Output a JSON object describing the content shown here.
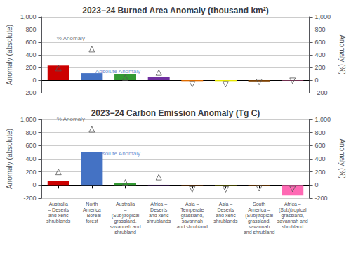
{
  "chart_data": [
    {
      "type": "bar",
      "title": "2023−24 Burned Area Anomaly (thousand km²)",
      "categories": [
        null,
        null,
        null,
        null,
        null,
        null,
        null,
        null
      ],
      "tick_labels": "y",
      "ylabel": "Anomaly (absolute)",
      "y2label": "Anomaly (%)",
      "ylim": [
        -200,
        1000
      ],
      "yticks": [
        -200,
        0,
        200,
        400,
        600,
        800,
        1000
      ],
      "y2lim": [
        -200,
        1000
      ],
      "y2ticks": [
        -200,
        0,
        200,
        400,
        600,
        800,
        1000
      ],
      "grid": true,
      "series": [
        {
          "type": "bar",
          "colors": [
            "#cc0000",
            "#4472c4",
            "#339933",
            "#7030a0",
            "#e06c00",
            "#e8e800",
            "#7b3f00",
            "#ff69b4"
          ],
          "values": [
            230,
            110,
            90,
            55,
            -15,
            -15,
            -20,
            -5
          ]
        },
        {
          "type": "scatter",
          "axis": "y2",
          "marker": "triangle",
          "color": "#555555",
          "values": [
            190,
            490,
            40,
            120,
            -65,
            -65,
            -30,
            -10
          ]
        }
      ],
      "annotations": [
        {
          "text": "% Anomaly",
          "x": 1,
          "y": 490,
          "axis": "y2",
          "color": "#555555"
        },
        {
          "text": "Absolute Anomaly",
          "x": 1,
          "y": 80,
          "color": "#4472c4"
        }
      ]
    },
    {
      "type": "bar",
      "title": "2023−24 Carbon Emission Anomaly (Tg C)",
      "categories": [
        "Australia\n– Deserts\nand xeric\nshrublands",
        "North\nAmerica\n– Boreal\nforest",
        "Australia\n–\n(Sub)tropical\ngrassland,\nsavannah and\nshrubland",
        "Africa –\nDeserts\nand xeric\nshrublands",
        "Asia –\nTemperate\ngrassland,\nsavannah\nand shrubland",
        "Asia –\nDeserts\nand xeric\nshrublands",
        "South\nAmerica –\n(Sub)tropical\ngrassland,\nsavannah\nand shrubland",
        "Africa –\n(Sub)tropical\ngrassland,\nsavannah and\nshrubland"
      ],
      "ylabel": "Anomaly (absolute)",
      "y2label": "Anomaly (%)",
      "ylim": [
        -200,
        1000
      ],
      "yticks": [
        -200,
        0,
        200,
        400,
        600,
        800,
        1000
      ],
      "y2lim": [
        -200,
        1000
      ],
      "y2ticks": [
        -200,
        0,
        200,
        400,
        600,
        800,
        1000
      ],
      "grid": true,
      "series": [
        {
          "type": "bar",
          "colors": [
            "#cc0000",
            "#4472c4",
            "#339933",
            "#7030a0",
            "#e06c00",
            "#e8e800",
            "#7b3f00",
            "#ff69b4"
          ],
          "values": [
            65,
            500,
            25,
            4,
            -3,
            -3,
            -8,
            -160
          ]
        },
        {
          "type": "scatter",
          "axis": "y2",
          "marker": "triangle",
          "color": "#555555",
          "values": [
            200,
            850,
            40,
            120,
            -65,
            -65,
            -50,
            -60
          ]
        }
      ],
      "annotations": [
        {
          "text": "% Anomaly",
          "x": 1,
          "y": 850,
          "axis": "y2",
          "color": "#555555"
        },
        {
          "text": "Absolute Anomaly",
          "x": 1,
          "y": 430,
          "color": "#4472c4"
        }
      ]
    }
  ]
}
